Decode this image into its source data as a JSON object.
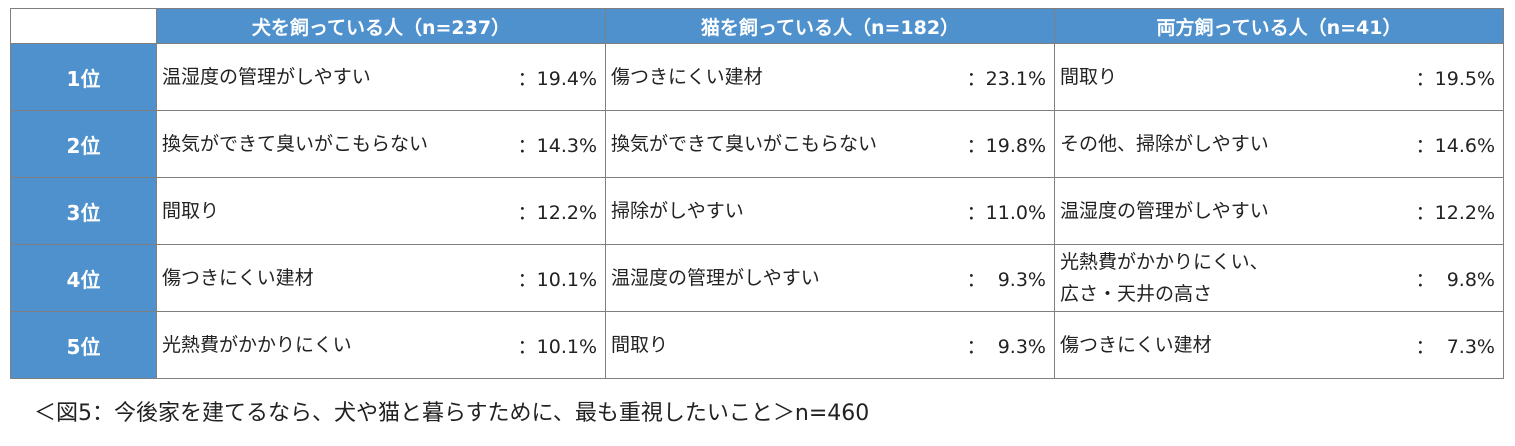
{
  "table": {
    "corner": "",
    "columns": [
      "犬を飼っている人（n=237）",
      "猫を飼っている人（n=182）",
      "両方飼っている人（n=41）"
    ],
    "rows": [
      {
        "rank": "1位",
        "cells": [
          {
            "name": "温湿度の管理がしやすい",
            "value": "：19.4%"
          },
          {
            "name": "傷つきにくい建材",
            "value": "：23.1%"
          },
          {
            "name": "間取り",
            "value": "：19.5%"
          }
        ]
      },
      {
        "rank": "2位",
        "cells": [
          {
            "name": "換気ができて臭いがこもらない",
            "value": "：14.3%"
          },
          {
            "name": "換気ができて臭いがこもらない",
            "value": "：19.8%"
          },
          {
            "name": "その他、掃除がしやすい",
            "value": "：14.6%"
          }
        ]
      },
      {
        "rank": "3位",
        "cells": [
          {
            "name": "間取り",
            "value": "：12.2%"
          },
          {
            "name": "掃除がしやすい",
            "value": "：11.0%"
          },
          {
            "name": "温湿度の管理がしやすい",
            "value": "：12.2%"
          }
        ]
      },
      {
        "rank": "4位",
        "cells": [
          {
            "name": "傷つきにくい建材",
            "value": "：10.1%"
          },
          {
            "name": "温湿度の管理がしやすい",
            "value": "：  9.3%"
          },
          {
            "name": "光熱費がかかりにくい、\n広さ・天井の高さ",
            "value": "：  9.8%"
          }
        ]
      },
      {
        "rank": "5位",
        "cells": [
          {
            "name": "光熱費がかかりにくい",
            "value": "：10.1%"
          },
          {
            "name": "間取り",
            "value": "：  9.3%"
          },
          {
            "name": "傷つきにくい建材",
            "value": "：  7.3%"
          }
        ]
      }
    ]
  },
  "caption": "＜図5：今後家を建てるなら、犬や猫と暮らすために、最も重視したいこと＞n=460"
}
